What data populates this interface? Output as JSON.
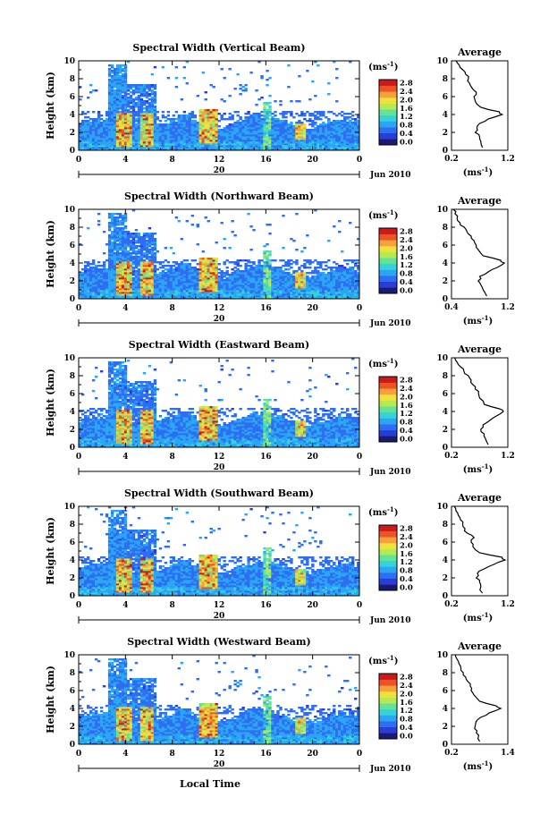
{
  "chart_data": {
    "type": "heatmap",
    "x_label": "Local Time",
    "colorbar": {
      "unit_label": "(ms",
      "unit_exponent": "-1",
      "unit_close": ")",
      "ticks": [
        "0.0",
        "0.4",
        "0.8",
        "1.2",
        "1.6",
        "2.0",
        "2.4",
        "2.8"
      ],
      "range": [
        0.0,
        2.8
      ],
      "colors": [
        "#1a1a6e",
        "#2b3bd6",
        "#2f6df2",
        "#2aa6f3",
        "#36d2dc",
        "#5fe39f",
        "#b7ea52",
        "#f1e23b",
        "#f4a23a",
        "#ec5428",
        "#cc1a1a"
      ]
    },
    "x_ticks": [
      "0",
      "4",
      "8",
      "12",
      "16",
      "20",
      "0"
    ],
    "x_range": [
      0,
      24
    ],
    "date_tick": "20",
    "date_label": "Jun 2010",
    "y_label": "Height (km)",
    "y_ticks": [
      "0",
      "2",
      "4",
      "6",
      "8",
      "10"
    ],
    "y_range": [
      0,
      10
    ],
    "average_title": "Average",
    "average_unit": "(ms",
    "average_exponent": "-1",
    "average_unit_close": ")",
    "panels": [
      {
        "title": "Spectral Width (Vertical Beam)",
        "avg_ticks": [
          "0.2",
          "1.2"
        ],
        "avg_range": [
          0.2,
          1.2
        ],
        "average_profile": {
          "height": [
            0.3,
            1.0,
            1.5,
            2.0,
            2.5,
            3.0,
            3.5,
            4.0,
            4.3,
            4.8,
            5.5,
            6.0,
            6.5,
            7.0,
            7.5,
            8.0,
            8.5,
            9.0,
            9.5,
            10.0
          ],
          "value": [
            0.75,
            0.72,
            0.7,
            0.62,
            0.65,
            0.7,
            0.85,
            1.1,
            1.05,
            0.72,
            0.62,
            0.6,
            0.64,
            0.56,
            0.52,
            0.5,
            0.45,
            0.4,
            0.34,
            0.28
          ]
        }
      },
      {
        "title": "Spectral Width (Northward Beam)",
        "avg_ticks": [
          "0.4",
          "1.2"
        ],
        "avg_range": [
          0.4,
          1.2
        ],
        "average_profile": {
          "height": [
            0.3,
            1.0,
            1.5,
            2.0,
            2.5,
            3.0,
            3.5,
            4.0,
            4.3,
            4.8,
            5.5,
            6.0,
            6.5,
            7.0,
            7.5,
            8.0,
            8.5,
            9.0,
            9.5,
            10.0
          ],
          "value": [
            0.9,
            0.85,
            0.82,
            0.78,
            0.8,
            0.92,
            1.05,
            1.15,
            1.1,
            0.85,
            0.78,
            0.75,
            0.72,
            0.68,
            0.62,
            0.58,
            0.52,
            0.48,
            0.45,
            0.42
          ]
        }
      },
      {
        "title": "Spectral Width (Eastward Beam)",
        "avg_ticks": [
          "0.2",
          "1.2"
        ],
        "avg_range": [
          0.2,
          1.2
        ],
        "average_profile": {
          "height": [
            0.3,
            1.0,
            1.5,
            2.0,
            2.5,
            3.0,
            3.5,
            4.0,
            4.3,
            4.8,
            5.5,
            6.0,
            6.5,
            7.0,
            7.5,
            8.0,
            8.5,
            9.0,
            9.5,
            10.0
          ],
          "value": [
            0.85,
            0.8,
            0.78,
            0.72,
            0.76,
            0.88,
            1.0,
            1.12,
            1.05,
            0.78,
            0.7,
            0.68,
            0.62,
            0.58,
            0.55,
            0.5,
            0.42,
            0.36,
            0.3,
            0.26
          ]
        }
      },
      {
        "title": "Spectral Width (Southward Beam)",
        "avg_ticks": [
          "0.2",
          "1.2"
        ],
        "avg_range": [
          0.2,
          1.2
        ],
        "average_profile": {
          "height": [
            0.3,
            1.0,
            1.5,
            2.0,
            2.5,
            3.0,
            3.5,
            4.0,
            4.3,
            4.8,
            5.5,
            6.0,
            6.5,
            7.0,
            7.5,
            8.0,
            8.5,
            9.0,
            9.5,
            10.0
          ],
          "value": [
            0.75,
            0.72,
            0.7,
            0.64,
            0.66,
            0.78,
            0.95,
            1.15,
            1.1,
            0.7,
            0.58,
            0.55,
            0.6,
            0.48,
            0.44,
            0.4,
            0.36,
            0.32,
            0.28,
            0.25
          ]
        }
      },
      {
        "title": "Spectral Width (Westward Beam)",
        "avg_ticks": [
          "0.2",
          "1.4"
        ],
        "avg_range": [
          0.2,
          1.4
        ],
        "average_profile": {
          "height": [
            0.3,
            1.0,
            1.5,
            2.0,
            2.5,
            3.0,
            3.5,
            4.0,
            4.3,
            4.8,
            5.5,
            6.0,
            6.5,
            7.0,
            7.5,
            8.0,
            8.5,
            9.0,
            9.5,
            10.0
          ],
          "value": [
            0.8,
            0.78,
            0.74,
            0.7,
            0.72,
            0.82,
            1.0,
            1.25,
            1.15,
            0.8,
            0.68,
            0.62,
            0.6,
            0.55,
            0.5,
            0.45,
            0.4,
            0.36,
            0.32,
            0.28
          ]
        }
      }
    ]
  }
}
